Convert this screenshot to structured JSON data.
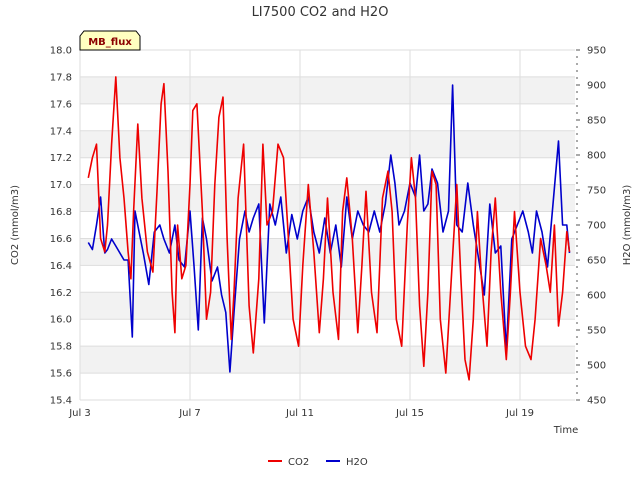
{
  "chart_data": {
    "type": "line",
    "title": "LI7500 CO2 and H2O",
    "badge": "MB_flux",
    "xlabel": "Time",
    "ylabel_left": "CO2 (mmol/m3)",
    "ylabel_right": "H2O (mmol/m3)",
    "x_ticks": [
      {
        "label": "Jul 3",
        "day": 3
      },
      {
        "label": "Jul 7",
        "day": 7
      },
      {
        "label": "Jul 11",
        "day": 11
      },
      {
        "label": "Jul 15",
        "day": 15
      },
      {
        "label": "Jul 19",
        "day": 19
      }
    ],
    "xlim": [
      3,
      21
    ],
    "ylim_left": [
      15.4,
      18.0
    ],
    "yticks_left": [
      "15.4",
      "15.6",
      "15.8",
      "16.0",
      "16.2",
      "16.4",
      "16.6",
      "16.8",
      "17.0",
      "17.2",
      "17.4",
      "17.6",
      "17.8",
      "18.0"
    ],
    "ylim_right": [
      450,
      950
    ],
    "yticks_right": [
      "450",
      "500",
      "550",
      "600",
      "650",
      "700",
      "750",
      "800",
      "850",
      "900",
      "950"
    ],
    "legend": [
      {
        "name": "CO2",
        "color": "#ee0000"
      },
      {
        "name": "H2O",
        "color": "#0000cc"
      }
    ],
    "series": [
      {
        "name": "CO2",
        "axis": "left",
        "color": "#ee0000",
        "x": [
          3.3,
          3.45,
          3.6,
          3.75,
          3.9,
          4.0,
          4.15,
          4.3,
          4.45,
          4.6,
          4.75,
          4.85,
          4.95,
          5.1,
          5.25,
          5.45,
          5.65,
          5.8,
          5.95,
          6.05,
          6.2,
          6.35,
          6.45,
          6.55,
          6.7,
          6.85,
          7.0,
          7.1,
          7.25,
          7.45,
          7.6,
          7.75,
          7.9,
          8.05,
          8.2,
          8.35,
          8.5,
          8.6,
          8.75,
          8.95,
          9.15,
          9.3,
          9.5,
          9.65,
          9.8,
          10.0,
          10.2,
          10.4,
          10.55,
          10.75,
          10.95,
          11.1,
          11.3,
          11.5,
          11.7,
          11.85,
          12.0,
          12.2,
          12.4,
          12.55,
          12.7,
          12.9,
          13.1,
          13.25,
          13.4,
          13.6,
          13.8,
          14.0,
          14.2,
          14.35,
          14.5,
          14.7,
          14.9,
          15.05,
          15.2,
          15.35,
          15.5,
          15.65,
          15.8,
          15.95,
          16.1,
          16.3,
          16.5,
          16.7,
          16.85,
          17.0,
          17.15,
          17.3,
          17.45,
          17.6,
          17.8,
          17.95,
          18.1,
          18.3,
          18.5,
          18.65,
          18.8,
          19.0,
          19.2,
          19.4,
          19.55,
          19.75,
          19.95,
          20.1,
          20.25,
          20.4,
          20.55,
          20.7,
          20.8
        ],
        "y": [
          17.05,
          17.2,
          17.3,
          16.6,
          16.5,
          16.7,
          17.3,
          17.8,
          17.2,
          16.9,
          16.5,
          16.3,
          16.8,
          17.45,
          16.9,
          16.5,
          16.35,
          16.95,
          17.6,
          17.75,
          17.1,
          16.2,
          15.9,
          16.7,
          16.3,
          16.4,
          17.0,
          17.55,
          17.6,
          16.8,
          16.0,
          16.2,
          17.0,
          17.5,
          17.65,
          16.6,
          15.85,
          16.2,
          16.9,
          17.3,
          16.1,
          15.75,
          16.3,
          17.3,
          16.7,
          16.8,
          17.3,
          17.2,
          16.7,
          16.0,
          15.8,
          16.4,
          17.0,
          16.5,
          15.9,
          16.3,
          16.9,
          16.2,
          15.85,
          16.8,
          17.05,
          16.6,
          15.9,
          16.4,
          16.95,
          16.2,
          15.9,
          16.9,
          17.1,
          16.8,
          16.0,
          15.8,
          16.7,
          17.2,
          16.9,
          16.1,
          15.65,
          16.2,
          17.1,
          17.0,
          16.0,
          15.6,
          16.3,
          17.0,
          16.3,
          15.7,
          15.55,
          16.0,
          16.8,
          16.3,
          15.8,
          16.5,
          16.9,
          16.2,
          15.7,
          16.2,
          16.8,
          16.2,
          15.8,
          15.7,
          16.0,
          16.6,
          16.4,
          16.2,
          16.7,
          15.95,
          16.2,
          16.65,
          16.5
        ]
      },
      {
        "name": "H2O",
        "axis": "right",
        "color": "#0000cc",
        "x": [
          3.3,
          3.45,
          3.6,
          3.75,
          3.9,
          4.0,
          4.15,
          4.3,
          4.45,
          4.6,
          4.75,
          4.9,
          5.0,
          5.15,
          5.3,
          5.5,
          5.7,
          5.9,
          6.05,
          6.25,
          6.45,
          6.6,
          6.8,
          7.0,
          7.15,
          7.3,
          7.45,
          7.6,
          7.8,
          8.0,
          8.15,
          8.3,
          8.45,
          8.6,
          8.8,
          9.0,
          9.15,
          9.3,
          9.5,
          9.7,
          9.9,
          10.1,
          10.3,
          10.5,
          10.7,
          10.9,
          11.1,
          11.3,
          11.5,
          11.7,
          11.9,
          12.1,
          12.3,
          12.5,
          12.7,
          12.9,
          13.1,
          13.3,
          13.5,
          13.7,
          13.9,
          14.1,
          14.3,
          14.45,
          14.6,
          14.8,
          15.0,
          15.2,
          15.35,
          15.5,
          15.65,
          15.8,
          16.0,
          16.2,
          16.4,
          16.55,
          16.7,
          16.9,
          17.1,
          17.3,
          17.5,
          17.7,
          17.9,
          18.1,
          18.3,
          18.5,
          18.7,
          18.9,
          19.1,
          19.3,
          19.45,
          19.6,
          19.8,
          20.0,
          20.2,
          20.4,
          20.55,
          20.7,
          20.8
        ],
        "y": [
          675,
          665,
          700,
          740,
          660,
          665,
          680,
          670,
          660,
          650,
          650,
          540,
          720,
          690,
          660,
          615,
          690,
          700,
          680,
          660,
          700,
          650,
          640,
          720,
          640,
          550,
          710,
          680,
          620,
          640,
          600,
          575,
          490,
          575,
          680,
          720,
          690,
          710,
          730,
          560,
          730,
          700,
          740,
          660,
          715,
          680,
          720,
          740,
          690,
          660,
          710,
          660,
          700,
          640,
          740,
          680,
          720,
          700,
          690,
          720,
          690,
          730,
          800,
          760,
          700,
          720,
          760,
          740,
          800,
          720,
          730,
          780,
          760,
          690,
          720,
          900,
          700,
          690,
          760,
          700,
          650,
          600,
          730,
          660,
          670,
          520,
          680,
          700,
          720,
          690,
          660,
          720,
          690,
          640,
          730,
          820,
          700,
          700,
          660
        ]
      }
    ]
  }
}
